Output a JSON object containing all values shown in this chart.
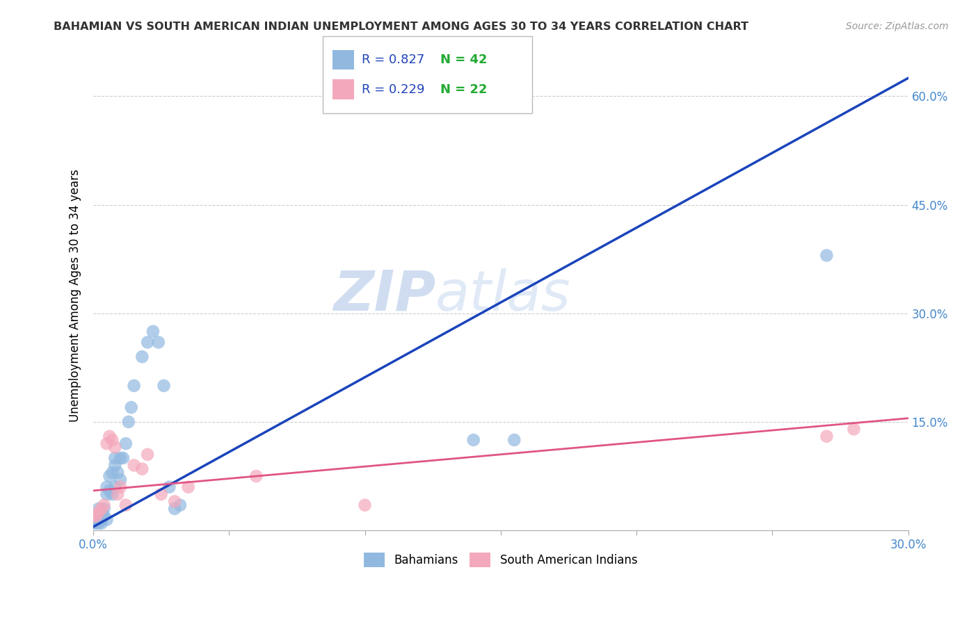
{
  "title": "BAHAMIAN VS SOUTH AMERICAN INDIAN UNEMPLOYMENT AMONG AGES 30 TO 34 YEARS CORRELATION CHART",
  "source": "Source: ZipAtlas.com",
  "ylabel": "Unemployment Among Ages 30 to 34 years",
  "xlim": [
    0.0,
    0.3
  ],
  "ylim": [
    0.0,
    0.65
  ],
  "xticks": [
    0.0,
    0.05,
    0.1,
    0.15,
    0.2,
    0.25,
    0.3
  ],
  "xtick_labels": [
    "0.0%",
    "",
    "",
    "",
    "",
    "",
    "30.0%"
  ],
  "yticks": [
    0.0,
    0.15,
    0.3,
    0.45,
    0.6
  ],
  "ytick_labels": [
    "",
    "15.0%",
    "30.0%",
    "45.0%",
    "60.0%"
  ],
  "watermark_zip": "ZIP",
  "watermark_atlas": "atlas",
  "legend_r1": "R = 0.827",
  "legend_n1": "N = 42",
  "legend_r2": "R = 0.229",
  "legend_n2": "N = 22",
  "blue_color": "#91b9e0",
  "pink_color": "#f4a8bb",
  "blue_line_color": "#1a44bb",
  "pink_line_color": "#e05585",
  "grid_color": "#cccccc",
  "blue_line_x": [
    0.0,
    0.3
  ],
  "blue_line_y": [
    0.005,
    0.625
  ],
  "pink_line_x": [
    0.0,
    0.3
  ],
  "pink_line_y": [
    0.055,
    0.155
  ],
  "bah_x": [
    0.0,
    0.001,
    0.001,
    0.001,
    0.002,
    0.002,
    0.002,
    0.002,
    0.003,
    0.003,
    0.003,
    0.004,
    0.004,
    0.005,
    0.005,
    0.005,
    0.006,
    0.006,
    0.007,
    0.007,
    0.008,
    0.008,
    0.008,
    0.009,
    0.01,
    0.01,
    0.011,
    0.012,
    0.013,
    0.014,
    0.015,
    0.018,
    0.02,
    0.022,
    0.024,
    0.026,
    0.028,
    0.03,
    0.032,
    0.14,
    0.155,
    0.27
  ],
  "bah_y": [
    0.01,
    0.01,
    0.015,
    0.02,
    0.01,
    0.015,
    0.02,
    0.03,
    0.01,
    0.015,
    0.025,
    0.02,
    0.03,
    0.015,
    0.05,
    0.06,
    0.055,
    0.075,
    0.05,
    0.08,
    0.06,
    0.09,
    0.1,
    0.08,
    0.07,
    0.1,
    0.1,
    0.12,
    0.15,
    0.17,
    0.2,
    0.24,
    0.26,
    0.275,
    0.26,
    0.2,
    0.06,
    0.03,
    0.035,
    0.125,
    0.125,
    0.38
  ],
  "sam_x": [
    0.0,
    0.001,
    0.002,
    0.003,
    0.004,
    0.005,
    0.006,
    0.007,
    0.008,
    0.009,
    0.01,
    0.012,
    0.015,
    0.018,
    0.02,
    0.025,
    0.03,
    0.035,
    0.06,
    0.1,
    0.27,
    0.28
  ],
  "sam_y": [
    0.02,
    0.02,
    0.025,
    0.03,
    0.035,
    0.12,
    0.13,
    0.125,
    0.115,
    0.05,
    0.06,
    0.035,
    0.09,
    0.085,
    0.105,
    0.05,
    0.04,
    0.06,
    0.075,
    0.035,
    0.13,
    0.14
  ]
}
